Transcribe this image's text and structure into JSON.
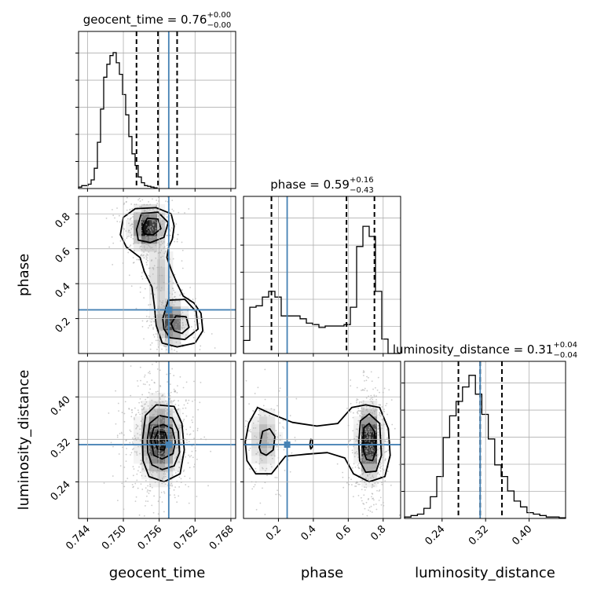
{
  "chart_data": {
    "type": "corner",
    "truth_color": "#4682b4",
    "parameters": [
      {
        "name": "geocent_time",
        "label": "geocent_time",
        "truth": 0.7576,
        "quantiles": [
          0.7522,
          0.7558,
          0.759
        ],
        "range": [
          0.7425,
          0.7688
        ],
        "ticks": [
          0.744,
          0.75,
          0.756,
          0.762,
          0.768
        ],
        "tick_labels": [
          "0.744",
          "0.750",
          "0.756",
          "0.762",
          "0.768"
        ],
        "title": {
          "prefix": "geocent_time = 0.76",
          "plus": "+0.00",
          "minus": "−0.00"
        },
        "hist": {
          "x0": 0.7425,
          "dx": 0.000526,
          "counts": [
            0.01,
            0.02,
            0.02,
            0.03,
            0.06,
            0.14,
            0.32,
            0.55,
            0.77,
            0.86,
            0.92,
            0.94,
            0.87,
            0.79,
            0.65,
            0.51,
            0.36,
            0.24,
            0.16,
            0.08,
            0.04,
            0.02,
            0.015,
            0.01,
            0.005
          ]
        }
      },
      {
        "name": "phase",
        "label": "phase",
        "truth": 0.25,
        "quantiles": [
          0.16,
          0.59,
          0.75
        ],
        "range": [
          0.0,
          0.9
        ],
        "ticks": [
          0.2,
          0.4,
          0.6,
          0.8
        ],
        "tick_labels": [
          "0.2",
          "0.4",
          "0.6",
          "0.8"
        ],
        "title": {
          "prefix": "phase = 0.59",
          "plus": "+0.16",
          "minus": "−0.43"
        },
        "hist": {
          "x0": 0.0,
          "dx": 0.036,
          "counts": [
            0.09,
            0.32,
            0.33,
            0.39,
            0.43,
            0.39,
            0.26,
            0.26,
            0.26,
            0.24,
            0.21,
            0.2,
            0.18,
            0.19,
            0.19,
            0.19,
            0.2,
            0.32,
            0.74,
            0.88,
            0.81,
            0.43,
            0.1,
            0.0,
            0.0
          ]
        }
      },
      {
        "name": "luminosity_distance",
        "label": "luminosity_distance",
        "truth": 0.31,
        "quantiles": [
          0.27,
          0.31,
          0.35
        ],
        "range": [
          0.171,
          0.467
        ],
        "ticks": [
          0.24,
          0.32,
          0.4
        ],
        "tick_labels": [
          "0.24",
          "0.32",
          "0.40"
        ],
        "title": {
          "prefix": "luminosity_distance = 0.31",
          "plus": "+0.04",
          "minus": "−0.04"
        },
        "hist": {
          "x0": 0.171,
          "dx": 0.01184,
          "counts": [
            0.01,
            0.02,
            0.03,
            0.07,
            0.15,
            0.29,
            0.56,
            0.71,
            0.81,
            0.91,
            0.99,
            0.86,
            0.72,
            0.55,
            0.37,
            0.29,
            0.19,
            0.12,
            0.08,
            0.04,
            0.03,
            0.02,
            0.01,
            0.01,
            0.005
          ]
        }
      }
    ],
    "pairs": [
      {
        "x": "geocent_time",
        "y": "phase",
        "blobs": [
          {
            "cx": 0.7541,
            "cy": 0.72,
            "sx": 0.0013,
            "sy": 0.06,
            "w": 1.0
          },
          {
            "cx": 0.758,
            "cy": 0.18,
            "sx": 0.0012,
            "sy": 0.065,
            "w": 0.75
          },
          {
            "cx": 0.7562,
            "cy": 0.44,
            "sx": 0.0011,
            "sy": 0.11,
            "w": 0.22
          }
        ],
        "contours": [
          [
            [
              0.75,
              0.78
            ],
            [
              0.752,
              0.83
            ],
            [
              0.7555,
              0.835
            ],
            [
              0.758,
              0.8
            ],
            [
              0.7585,
              0.73
            ],
            [
              0.7582,
              0.655
            ],
            [
              0.7576,
              0.61
            ],
            [
              0.7573,
              0.55
            ],
            [
              0.758,
              0.48
            ],
            [
              0.759,
              0.4
            ],
            [
              0.76,
              0.33
            ],
            [
              0.7618,
              0.29
            ],
            [
              0.763,
              0.23
            ],
            [
              0.7633,
              0.13
            ],
            [
              0.762,
              0.06
            ],
            [
              0.759,
              0.038
            ],
            [
              0.7565,
              0.06
            ],
            [
              0.7555,
              0.16
            ],
            [
              0.7552,
              0.27
            ],
            [
              0.7548,
              0.38
            ],
            [
              0.7535,
              0.47
            ],
            [
              0.7528,
              0.55
            ],
            [
              0.7505,
              0.61
            ],
            [
              0.7495,
              0.68
            ]
          ],
          [
            [
              0.7522,
              0.71
            ],
            [
              0.753,
              0.8
            ],
            [
              0.7558,
              0.81
            ],
            [
              0.7575,
              0.75
            ],
            [
              0.7568,
              0.665
            ],
            [
              0.7545,
              0.635
            ],
            [
              0.7525,
              0.65
            ]
          ],
          [
            [
              0.7532,
              0.72
            ],
            [
              0.754,
              0.775
            ],
            [
              0.7558,
              0.77
            ],
            [
              0.7563,
              0.715
            ],
            [
              0.755,
              0.68
            ],
            [
              0.7535,
              0.685
            ]
          ],
          [
            [
              0.7566,
              0.2
            ],
            [
              0.7575,
              0.305
            ],
            [
              0.7603,
              0.31
            ],
            [
              0.7622,
              0.24
            ],
            [
              0.7625,
              0.14
            ],
            [
              0.7603,
              0.08
            ],
            [
              0.7578,
              0.09
            ],
            [
              0.7568,
              0.14
            ]
          ],
          [
            [
              0.758,
              0.17
            ],
            [
              0.7588,
              0.215
            ],
            [
              0.7605,
              0.21
            ],
            [
              0.761,
              0.15
            ],
            [
              0.7598,
              0.115
            ],
            [
              0.7585,
              0.13
            ]
          ]
        ]
      },
      {
        "x": "geocent_time",
        "y": "luminosity_distance",
        "blobs": [
          {
            "cx": 0.756,
            "cy": 0.318,
            "sx": 0.0016,
            "sy": 0.035,
            "w": 1.0
          }
        ],
        "contours": [
          [
            [
              0.7532,
              0.318
            ],
            [
              0.7537,
              0.365
            ],
            [
              0.7555,
              0.385
            ],
            [
              0.7585,
              0.382
            ],
            [
              0.7598,
              0.35
            ],
            [
              0.7602,
              0.3
            ],
            [
              0.7595,
              0.255
            ],
            [
              0.7568,
              0.24
            ],
            [
              0.7543,
              0.25
            ],
            [
              0.7533,
              0.28
            ]
          ],
          [
            [
              0.754,
              0.318
            ],
            [
              0.7544,
              0.35
            ],
            [
              0.756,
              0.365
            ],
            [
              0.7582,
              0.36
            ],
            [
              0.7592,
              0.335
            ],
            [
              0.7594,
              0.295
            ],
            [
              0.7585,
              0.27
            ],
            [
              0.7565,
              0.263
            ],
            [
              0.7548,
              0.272
            ],
            [
              0.7541,
              0.295
            ]
          ],
          [
            [
              0.7546,
              0.32
            ],
            [
              0.7551,
              0.342
            ],
            [
              0.7567,
              0.348
            ],
            [
              0.7582,
              0.34
            ],
            [
              0.7587,
              0.315
            ],
            [
              0.7583,
              0.293
            ],
            [
              0.7565,
              0.283
            ],
            [
              0.7551,
              0.29
            ]
          ],
          [
            [
              0.7552,
              0.32
            ],
            [
              0.7558,
              0.335
            ],
            [
              0.757,
              0.333
            ],
            [
              0.7574,
              0.315
            ],
            [
              0.7568,
              0.3
            ],
            [
              0.7557,
              0.302
            ]
          ]
        ]
      },
      {
        "x": "phase",
        "y": "luminosity_distance",
        "blobs": [
          {
            "cx": 0.72,
            "cy": 0.315,
            "sx": 0.03,
            "sy": 0.032,
            "w": 1.0
          },
          {
            "cx": 0.12,
            "cy": 0.32,
            "sx": 0.04,
            "sy": 0.03,
            "w": 0.28
          }
        ],
        "contours": [
          [
            [
              0.03,
              0.35
            ],
            [
              0.08,
              0.38
            ],
            [
              0.16,
              0.368
            ],
            [
              0.28,
              0.352
            ],
            [
              0.42,
              0.345
            ],
            [
              0.54,
              0.35
            ],
            [
              0.62,
              0.38
            ],
            [
              0.7,
              0.385
            ],
            [
              0.78,
              0.38
            ],
            [
              0.83,
              0.34
            ],
            [
              0.84,
              0.29
            ],
            [
              0.81,
              0.25
            ],
            [
              0.72,
              0.24
            ],
            [
              0.63,
              0.255
            ],
            [
              0.58,
              0.285
            ],
            [
              0.48,
              0.295
            ],
            [
              0.36,
              0.292
            ],
            [
              0.24,
              0.288
            ],
            [
              0.16,
              0.255
            ],
            [
              0.07,
              0.255
            ],
            [
              0.02,
              0.28
            ],
            [
              0.01,
              0.315
            ]
          ],
          [
            [
              0.66,
              0.315
            ],
            [
              0.67,
              0.355
            ],
            [
              0.72,
              0.368
            ],
            [
              0.78,
              0.35
            ],
            [
              0.79,
              0.29
            ],
            [
              0.76,
              0.26
            ],
            [
              0.7,
              0.258
            ],
            [
              0.665,
              0.28
            ]
          ],
          [
            [
              0.685,
              0.315
            ],
            [
              0.69,
              0.342
            ],
            [
              0.72,
              0.35
            ],
            [
              0.75,
              0.335
            ],
            [
              0.76,
              0.3
            ],
            [
              0.74,
              0.28
            ],
            [
              0.705,
              0.282
            ],
            [
              0.69,
              0.295
            ]
          ],
          [
            [
              0.09,
              0.305
            ],
            [
              0.11,
              0.335
            ],
            [
              0.15,
              0.34
            ],
            [
              0.18,
              0.325
            ],
            [
              0.17,
              0.3
            ],
            [
              0.13,
              0.29
            ],
            [
              0.1,
              0.295
            ]
          ],
          [
            [
              0.38,
              0.31
            ],
            [
              0.385,
              0.32
            ],
            [
              0.395,
              0.319
            ],
            [
              0.395,
              0.306
            ],
            [
              0.385,
              0.302
            ]
          ]
        ]
      }
    ]
  }
}
